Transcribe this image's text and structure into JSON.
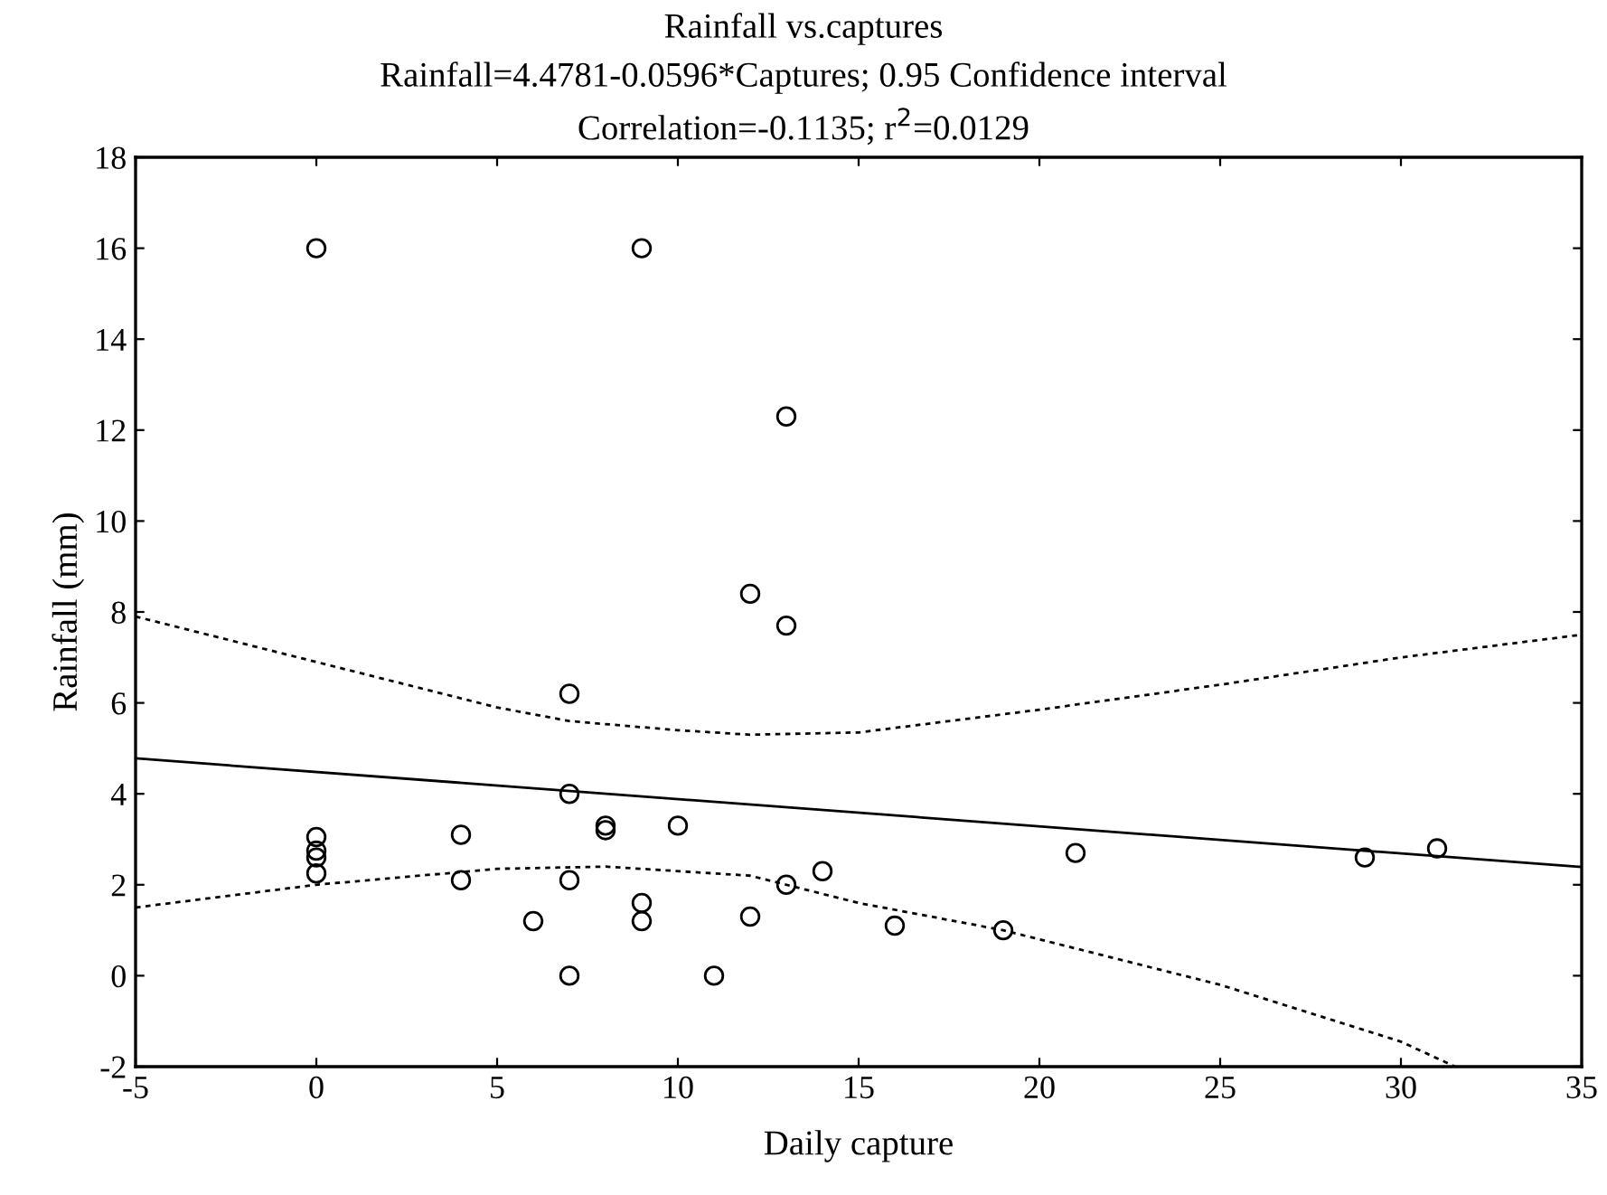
{
  "chart_data": {
    "type": "scatter",
    "title": "Rainfall vs.captures",
    "subtitle": [
      "Rainfall=4.4781-0.0596*Captures; 0.95 Confidence interval",
      "Correlation=-0.1135; r$^{2}$=0.0129"
    ],
    "xlabel": "Daily capture",
    "ylabel": "Rainfall (mm)",
    "xlim": [
      -5,
      35
    ],
    "xticks": [
      -5,
      0,
      5,
      10,
      15,
      20,
      25,
      30,
      35
    ],
    "ylim": [
      -2,
      18
    ],
    "yticks": [
      -2,
      0,
      2,
      4,
      6,
      8,
      10,
      12,
      14,
      16,
      18
    ],
    "grid": false,
    "series": [
      {
        "marker": "circle",
        "color": "#000000",
        "x": [
          0,
          9,
          13,
          12,
          13,
          7,
          7,
          8,
          8,
          10,
          0,
          0,
          0,
          0,
          4,
          4,
          7,
          6,
          9,
          9,
          7,
          11,
          12,
          13,
          14,
          16,
          19,
          21,
          29,
          31
        ],
        "values": [
          16,
          16,
          12.3,
          8.4,
          7.7,
          6.2,
          4.0,
          3.3,
          3.2,
          3.3,
          3.05,
          2.75,
          2.6,
          2.25,
          3.1,
          2.1,
          2.1,
          1.2,
          1.6,
          1.2,
          0,
          0,
          1.3,
          2.0,
          2.3,
          1.1,
          1.0,
          2.7,
          2.6,
          2.8
        ]
      },
      {
        "type": "line",
        "line_style": "solid",
        "marker": "none",
        "color": "#000000",
        "x": [
          -5,
          35
        ],
        "values": [
          4.78,
          2.39
        ]
      },
      {
        "type": "line",
        "line_style": "dotted",
        "marker": "none",
        "color": "#000000",
        "x": [
          -5,
          0,
          5,
          7,
          10,
          12,
          15,
          20,
          25,
          30,
          35
        ],
        "values": [
          7.9,
          6.9,
          5.9,
          5.6,
          5.4,
          5.3,
          5.35,
          5.85,
          6.4,
          7.0,
          7.5
        ]
      },
      {
        "type": "line",
        "line_style": "dotted",
        "marker": "none",
        "color": "#000000",
        "x": [
          -5,
          0,
          5,
          8,
          12,
          15,
          19,
          25,
          30,
          31.5
        ],
        "values": [
          1.5,
          2.0,
          2.35,
          2.4,
          2.2,
          1.6,
          1.0,
          -0.2,
          -1.45,
          -2
        ]
      }
    ]
  }
}
